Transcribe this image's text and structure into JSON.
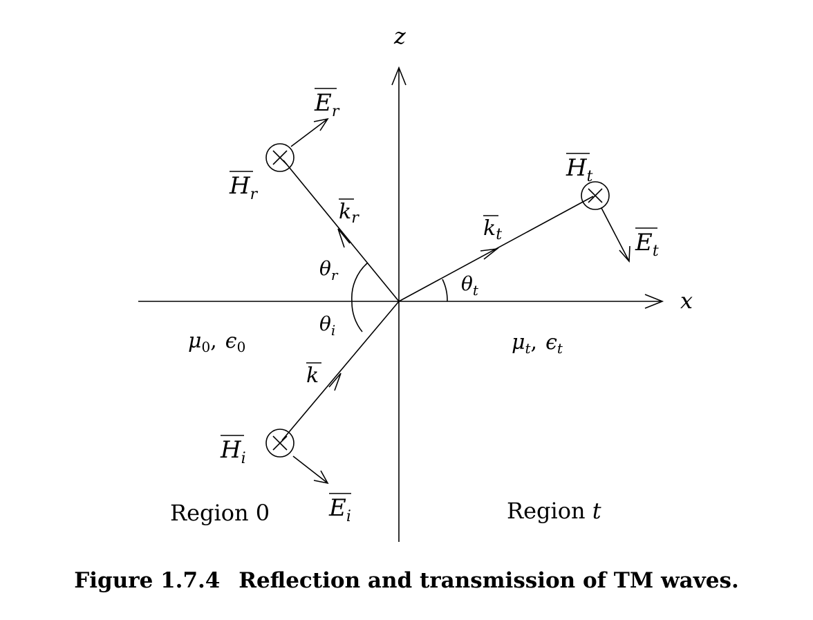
{
  "axes": {
    "x_label": "x",
    "z_label": "z"
  },
  "incident": {
    "H_base": "H",
    "H_sub": "i",
    "E_base": "E",
    "E_sub": "i",
    "k_label": "k",
    "theta_base": "θ",
    "theta_sub": "i"
  },
  "reflected": {
    "H_base": "H",
    "H_sub": "r",
    "E_base": "E",
    "E_sub": "r",
    "k_base": "k",
    "k_sub": "r",
    "theta_base": "θ",
    "theta_sub": "r"
  },
  "transmitted": {
    "H_base": "H",
    "H_sub": "t",
    "E_base": "E",
    "E_sub": "t",
    "k_base": "k",
    "k_sub": "t",
    "theta_base": "θ",
    "theta_sub": "t"
  },
  "media": {
    "region0": {
      "mu_base": "μ",
      "mu_sub": "0",
      "eps_base": "ϵ",
      "eps_sub": "0",
      "separator": ",",
      "name": "Region 0"
    },
    "regiont": {
      "mu_base": "μ",
      "mu_sub": "t",
      "eps_base": "ϵ",
      "eps_sub": "t",
      "separator": ",",
      "name_prefix": "Region ",
      "name_var": "t"
    }
  },
  "caption": {
    "number": "Figure 1.7.4",
    "text": "Reflection and transmission of TM waves."
  }
}
